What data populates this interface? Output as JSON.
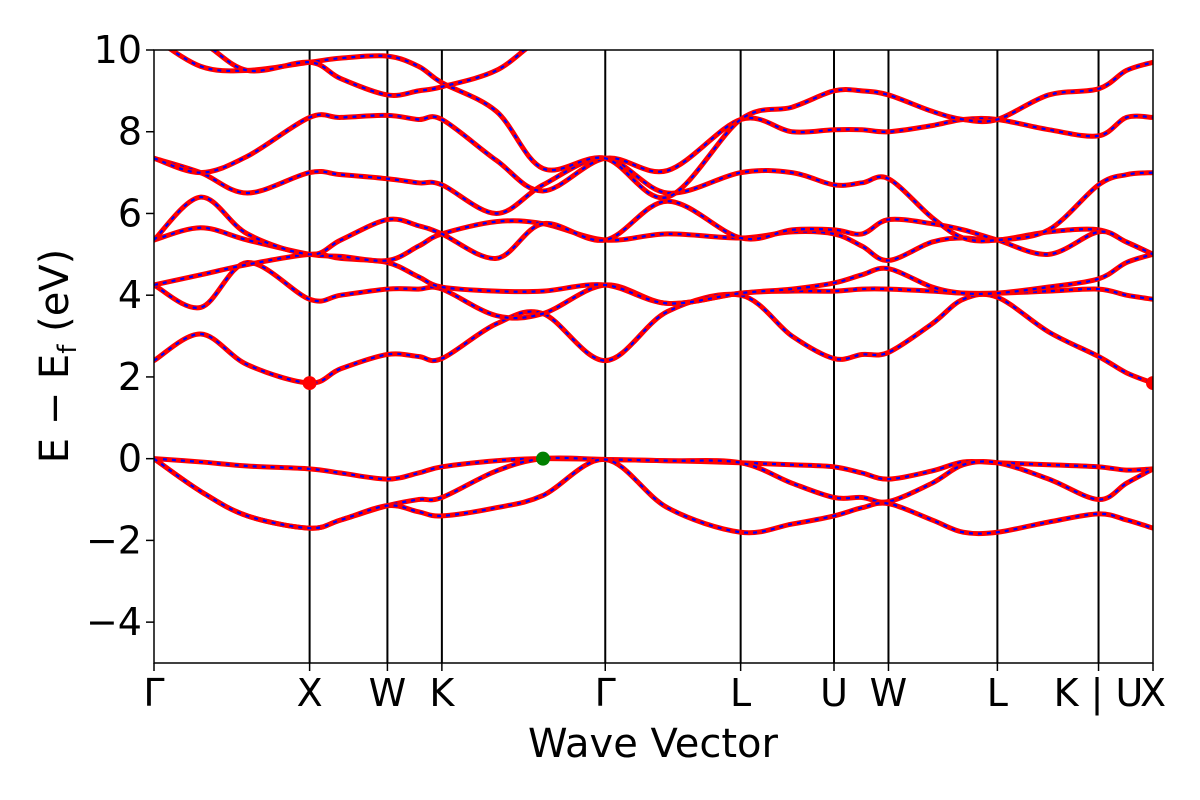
{
  "chart_data": {
    "type": "line",
    "xlabel": "Wave Vector",
    "ylabel": "E − E",
    "ylabel_subscript": "f",
    "ylabel_unit": " (eV)",
    "ylim": [
      -5,
      10
    ],
    "yticks": [
      -4,
      -2,
      0,
      2,
      4,
      6,
      8,
      10
    ],
    "ytick_labels": [
      "−4",
      "−2",
      "0",
      "2",
      "4",
      "6",
      "8",
      "10"
    ],
    "kpoint_positions": [
      0,
      1,
      1.5,
      1.85,
      2.9,
      3.77,
      4.37,
      4.72,
      5.42,
      6.07,
      6.42
    ],
    "kpoint_labels": [
      "Γ",
      "X",
      "W",
      "K",
      "Γ",
      "L",
      "U",
      "W",
      "L",
      "K | U",
      "X"
    ],
    "xlim": [
      0,
      6.42
    ],
    "vertical_lines_at": [
      1,
      1.5,
      1.85,
      2.9,
      3.77,
      4.37,
      4.72,
      5.42,
      6.07
    ],
    "grid": false,
    "series_style": {
      "line_color": "#ff0000",
      "dash_color": "#0000ff"
    },
    "series": [
      {
        "x": [
          0,
          0.3,
          0.6,
          1,
          1.2,
          1.5,
          1.7,
          1.85,
          2.2,
          2.5,
          2.9,
          3.3,
          3.77,
          4.1,
          4.37,
          4.55,
          4.72,
          5.0,
          5.2,
          5.42,
          5.75,
          6.07,
          6.25,
          6.42
        ],
        "y": [
          0,
          -0.08,
          -0.18,
          -0.25,
          -0.35,
          -0.5,
          -0.35,
          -0.2,
          -0.05,
          0,
          -0.02,
          -0.05,
          -0.1,
          -0.15,
          -0.2,
          -0.35,
          -0.5,
          -0.3,
          -0.08,
          -0.1,
          -0.15,
          -0.2,
          -0.28,
          -0.25
        ]
      },
      {
        "x": [
          0,
          0.3,
          0.6,
          1,
          1.2,
          1.5,
          1.7,
          1.85,
          2.2,
          2.5,
          2.9,
          3.3,
          3.77,
          4.1,
          4.37,
          4.55,
          4.72,
          5.0,
          5.2,
          5.42,
          5.75,
          6.07,
          6.25,
          6.42
        ],
        "y": [
          0,
          -0.8,
          -1.4,
          -1.7,
          -1.5,
          -1.15,
          -1.0,
          -0.95,
          -0.3,
          0,
          -0.02,
          -0.05,
          -0.1,
          -0.6,
          -0.95,
          -0.95,
          -1.05,
          -0.6,
          -0.15,
          -0.1,
          -0.5,
          -1.0,
          -0.6,
          -0.25
        ]
      },
      {
        "x": [
          0,
          0.3,
          0.6,
          1,
          1.2,
          1.5,
          1.7,
          1.85,
          2.2,
          2.5,
          2.9,
          3.3,
          3.77,
          4.1,
          4.37,
          4.55,
          4.72,
          5.0,
          5.2,
          5.42,
          5.75,
          6.07,
          6.25,
          6.42
        ],
        "y": [
          0,
          -0.8,
          -1.4,
          -1.7,
          -1.5,
          -1.15,
          -1.3,
          -1.4,
          -1.2,
          -0.9,
          -0.02,
          -1.2,
          -1.8,
          -1.6,
          -1.4,
          -1.2,
          -1.1,
          -1.5,
          -1.8,
          -1.8,
          -1.55,
          -1.35,
          -1.5,
          -1.7
        ]
      },
      {
        "x": [
          0,
          0.3,
          0.6,
          1,
          1.2,
          1.5,
          1.7,
          1.85,
          2.2,
          2.5,
          2.9,
          3.3,
          3.77,
          4.1,
          4.37,
          4.55,
          4.72,
          5.0,
          5.2,
          5.42,
          5.75,
          6.07,
          6.25,
          6.42
        ],
        "y": [
          2.4,
          3.05,
          2.3,
          1.85,
          2.2,
          2.55,
          2.5,
          2.45,
          3.3,
          3.55,
          2.4,
          3.6,
          4.0,
          3.0,
          2.45,
          2.55,
          2.6,
          3.3,
          3.9,
          3.95,
          3.1,
          2.5,
          2.1,
          1.85
        ]
      },
      {
        "x": [
          0,
          0.3,
          0.6,
          1,
          1.2,
          1.5,
          1.7,
          1.85,
          2.2,
          2.5,
          2.9,
          3.3,
          3.77,
          4.1,
          4.37,
          4.55,
          4.72,
          5.0,
          5.2,
          5.42,
          5.75,
          6.07,
          6.25,
          6.42
        ],
        "y": [
          4.25,
          3.7,
          4.8,
          3.9,
          4.0,
          4.15,
          4.15,
          4.15,
          3.5,
          3.55,
          4.25,
          3.8,
          4.05,
          4.1,
          4.1,
          4.15,
          4.15,
          4.1,
          4.05,
          4.05,
          4.1,
          4.15,
          4.0,
          3.9
        ]
      },
      {
        "x": [
          0,
          0.3,
          0.6,
          1,
          1.2,
          1.5,
          1.7,
          1.85,
          2.2,
          2.5,
          2.9,
          3.3,
          3.77,
          4.1,
          4.37,
          4.55,
          4.72,
          5.0,
          5.2,
          5.42,
          5.75,
          6.07,
          6.25,
          6.42
        ],
        "y": [
          4.25,
          4.5,
          4.75,
          5.0,
          4.9,
          4.8,
          4.45,
          4.2,
          4.1,
          4.1,
          4.25,
          3.8,
          4.05,
          4.15,
          4.3,
          4.5,
          4.65,
          4.2,
          4.05,
          4.05,
          4.2,
          4.4,
          4.8,
          5.0
        ]
      },
      {
        "x": [
          0,
          0.3,
          0.6,
          1,
          1.2,
          1.5,
          1.7,
          1.85,
          2.2,
          2.5,
          2.9,
          3.3,
          3.77,
          4.1,
          4.37,
          4.55,
          4.72,
          5.0,
          5.2,
          5.42,
          5.75,
          6.07,
          6.25,
          6.42
        ],
        "y": [
          5.35,
          5.65,
          5.35,
          5.0,
          4.95,
          4.85,
          5.2,
          5.5,
          5.8,
          5.75,
          5.35,
          5.5,
          5.4,
          5.55,
          5.5,
          5.2,
          4.85,
          5.3,
          5.4,
          5.35,
          5.55,
          5.6,
          5.3,
          5.0
        ]
      },
      {
        "x": [
          0,
          0.3,
          0.6,
          1,
          1.2,
          1.5,
          1.7,
          1.85,
          2.2,
          2.5,
          2.9,
          3.3,
          3.77,
          4.1,
          4.37,
          4.55,
          4.72,
          5.0,
          5.2,
          5.42,
          5.75,
          6.07,
          6.25,
          6.42
        ],
        "y": [
          5.35,
          6.4,
          5.5,
          5.0,
          5.35,
          5.85,
          5.7,
          5.5,
          4.9,
          5.75,
          5.35,
          6.3,
          5.4,
          5.6,
          5.6,
          5.5,
          5.85,
          5.75,
          5.6,
          5.35,
          5.0,
          5.55,
          5.3,
          5.0
        ]
      },
      {
        "x": [
          0,
          0.3,
          0.6,
          1,
          1.2,
          1.5,
          1.7,
          1.85,
          2.2,
          2.5,
          2.9,
          3.3,
          3.77,
          4.1,
          4.37,
          4.55,
          4.72,
          5.0,
          5.2,
          5.42,
          5.75,
          6.07,
          6.25,
          6.42
        ],
        "y": [
          7.35,
          7.0,
          6.5,
          7.0,
          6.95,
          6.85,
          6.75,
          6.7,
          6.0,
          6.7,
          7.35,
          6.5,
          7.0,
          7.0,
          6.7,
          6.75,
          6.85,
          5.9,
          5.4,
          5.35,
          5.6,
          6.7,
          6.95,
          7.0
        ]
      },
      {
        "x": [
          0,
          0.3,
          0.6,
          1,
          1.2,
          1.5,
          1.7,
          1.85,
          2.2,
          2.5,
          2.9,
          3.3,
          3.77,
          4.1,
          4.37,
          4.55,
          4.72,
          5.0,
          5.2,
          5.42,
          5.75,
          6.07,
          6.25,
          6.42
        ],
        "y": [
          7.35,
          7.0,
          7.4,
          8.35,
          8.35,
          8.4,
          8.3,
          8.3,
          7.3,
          6.55,
          7.35,
          7.05,
          8.3,
          8.0,
          8.05,
          8.05,
          8.0,
          8.15,
          8.3,
          8.3,
          8.05,
          7.9,
          8.35,
          8.35
        ]
      },
      {
        "x": [
          0,
          0.3,
          0.6,
          1,
          1.2,
          1.5,
          1.7,
          1.85,
          2.2,
          2.5,
          2.9,
          3.3,
          3.77,
          4.1,
          4.37,
          4.55,
          4.72,
          5.0,
          5.2,
          5.42,
          5.75,
          6.07,
          6.25,
          6.42
        ],
        "y": [
          10.3,
          9.6,
          9.5,
          9.7,
          9.8,
          9.85,
          9.6,
          9.2,
          8.5,
          7.1,
          7.35,
          6.4,
          8.3,
          8.6,
          9.0,
          9.0,
          8.9,
          8.5,
          8.3,
          8.3,
          8.9,
          9.05,
          9.5,
          9.7
        ]
      },
      {
        "x": [
          0,
          0.3,
          0.6,
          1,
          1.2,
          1.5,
          1.7,
          1.85,
          2.2,
          2.5,
          2.9
        ],
        "y": [
          10.5,
          10.2,
          9.5,
          9.7,
          9.3,
          8.9,
          9.0,
          9.1,
          9.5,
          10.3,
          10.8
        ]
      }
    ],
    "markers": [
      {
        "x": 1.0,
        "y": 1.85,
        "color": "#ff0000"
      },
      {
        "x": 6.42,
        "y": 1.85,
        "color": "#ff0000"
      },
      {
        "x": 2.5,
        "y": 0.0,
        "color": "#008000"
      }
    ]
  }
}
